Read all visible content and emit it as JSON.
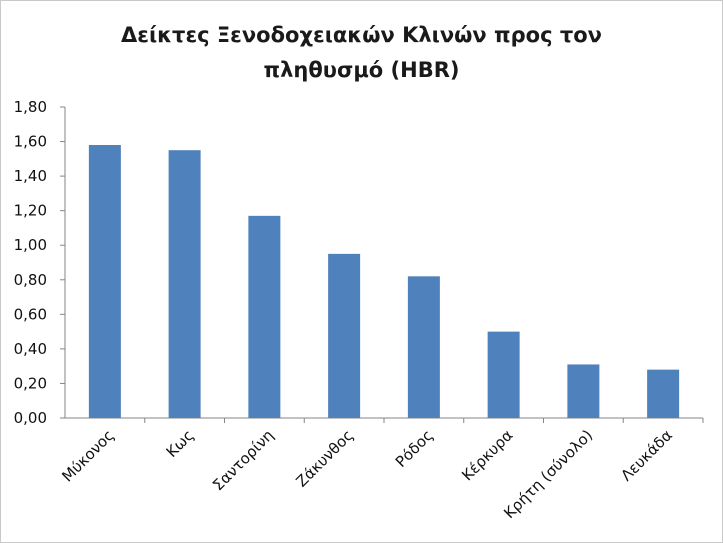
{
  "chart_data": {
    "type": "bar",
    "title_lines": [
      "Δείκτες Ξενοδοχειακών Κλινών προς τον",
      "πληθυσμό (HBR)"
    ],
    "categories": [
      "Μύκονος",
      "Κως",
      "Σαντορίνη",
      "Ζάκυνθος",
      "Ρόδος",
      "Κέρκυρα",
      "Κρήτη (σύνολο)",
      "Λευκάδα"
    ],
    "values": [
      1.58,
      1.55,
      1.17,
      0.95,
      0.82,
      0.5,
      0.31,
      0.28
    ],
    "ylim": [
      0,
      1.8
    ],
    "yticks": [
      "0,00",
      "0,20",
      "0,40",
      "0,60",
      "0,80",
      "1,00",
      "1,20",
      "1,40",
      "1,60",
      "1,80"
    ],
    "xlabel": "",
    "ylabel": "",
    "grid": false,
    "legend": "none",
    "bar_color": "#4f81bd"
  }
}
